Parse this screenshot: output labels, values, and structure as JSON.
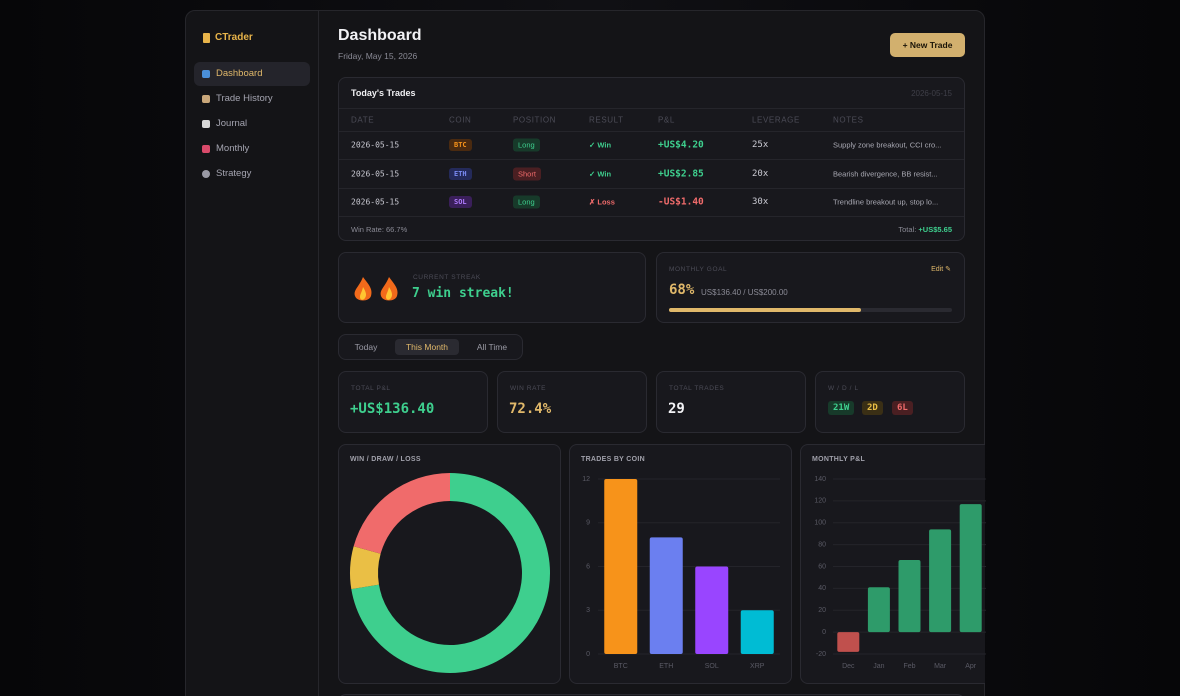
{
  "sidebar": {
    "brand": "CTrader",
    "nav": [
      "Dashboard",
      "Trade History",
      "Journal",
      "Monthly",
      "Strategy"
    ]
  },
  "header": {
    "title": "Dashboard",
    "date": "Friday, May 15, 2026",
    "button": "+ New Trade"
  },
  "trades": {
    "title": "Today's Trades",
    "date": "2026-05-15",
    "columns": [
      "DATE",
      "COIN",
      "POSITION",
      "RESULT",
      "P&L",
      "LEVERAGE",
      "NOTES"
    ],
    "rows": [
      [
        "2026-05-15",
        "BTC",
        "Long",
        "✓ Win",
        "+US$4.20",
        "25x",
        "Supply zone breakout, CCI cro..."
      ],
      [
        "2026-05-15",
        "ETH",
        "Short",
        "✓ Win",
        "+US$2.85",
        "20x",
        "Bearish divergence, BB resist..."
      ],
      [
        "2026-05-15",
        "SOL",
        "Long",
        "✗ Loss",
        "-US$1.40",
        "30x",
        "Trendline breakout up, stop lo..."
      ]
    ],
    "win_rate": "Win Rate: 66.7%",
    "total_label": "Total:",
    "total": "+US$5.65"
  },
  "streak": {
    "label": "CURRENT STREAK",
    "text": "7 win streak!"
  },
  "goal": {
    "label": "MONTHLY GOAL",
    "edit": "Edit ✎",
    "percent": "68%",
    "amount": "US$136.40 / US$200.00",
    "progress": 68
  },
  "tabs": [
    "Today",
    "This Month",
    "All Time"
  ],
  "stats": [
    {
      "label": "TOTAL P&L",
      "value": "+US$136.40"
    },
    {
      "label": "WIN RATE",
      "value": "72.4%"
    },
    {
      "label": "TOTAL TRADES",
      "value": "29"
    },
    {
      "label": "W / D / L",
      "badges": [
        "21W",
        "2D",
        "6L"
      ]
    }
  ],
  "chart_data": [
    {
      "type": "pie",
      "title": "WIN / DRAW / LOSS",
      "values": [
        21,
        2,
        6
      ],
      "colors": [
        "#3ecf8e",
        "#eabf45",
        "#f06b6b"
      ]
    },
    {
      "type": "bar",
      "title": "TRADES BY COIN",
      "categories": [
        "BTC",
        "ETH",
        "SOL",
        "XRP"
      ],
      "values": [
        12,
        8,
        6,
        3
      ],
      "colors": [
        "#f7931a",
        "#6b7ff0",
        "#9945ff",
        "#00bcd4"
      ],
      "ylim": [
        0,
        12
      ],
      "yticks": [
        0,
        3,
        6,
        9,
        12
      ],
      "grid": true
    },
    {
      "type": "bar",
      "title": "MONTHLY P&L",
      "categories": [
        "Dec",
        "Jan",
        "Feb",
        "Mar",
        "Apr"
      ],
      "values": [
        -18,
        41,
        66,
        94,
        117
      ],
      "colors": [
        "#c0504d",
        "#2e9b6a",
        "#2e9b6a",
        "#2e9b6a",
        "#2e9b6a"
      ],
      "ylim": [
        -20,
        140
      ],
      "yticks": [
        -20,
        0,
        20,
        40,
        60,
        80,
        100,
        120,
        140
      ],
      "grid": true
    }
  ]
}
